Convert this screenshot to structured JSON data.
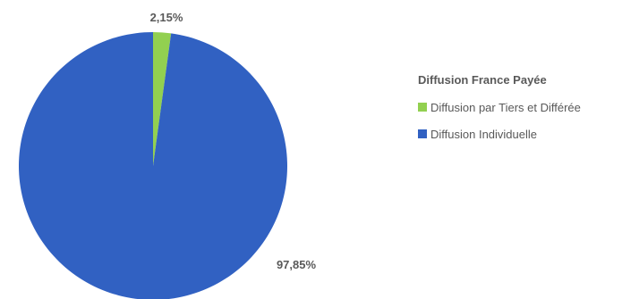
{
  "chart_data": {
    "type": "pie",
    "title": "",
    "legend_title": "Diffusion France Payée",
    "legend_placement": "right",
    "series": [
      {
        "name": "Diffusion France Payée",
        "slices": [
          {
            "label": "Diffusion par Tiers et Différée",
            "value": 2.15,
            "display": "2,15%",
            "color": "#92D050"
          },
          {
            "label": "Diffusion Individuelle",
            "value": 97.85,
            "display": "97,85%",
            "color": "#3161C2"
          }
        ]
      }
    ]
  }
}
